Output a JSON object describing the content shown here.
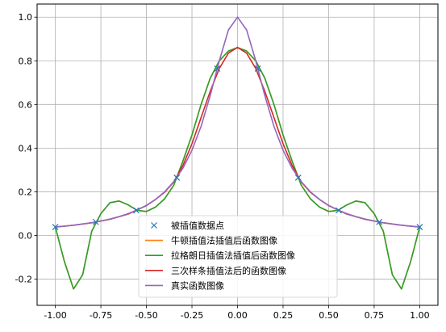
{
  "chart_data": {
    "type": "line",
    "title": "",
    "xlabel": "",
    "ylabel": "",
    "xlim": [
      -1.1,
      1.1
    ],
    "ylim": [
      -0.32,
      1.06
    ],
    "grid": true,
    "legend_position": "lower-center",
    "xticks": [
      "-1.00",
      "-0.75",
      "-0.50",
      "-0.25",
      "0.00",
      "0.25",
      "0.50",
      "0.75",
      "1.00"
    ],
    "xtick_values": [
      -1.0,
      -0.75,
      -0.5,
      -0.25,
      0.0,
      0.25,
      0.5,
      0.75,
      1.0
    ],
    "yticks": [
      "-0.2",
      "0.0",
      "0.2",
      "0.4",
      "0.6",
      "0.8",
      "1.0"
    ],
    "ytick_values": [
      -0.2,
      0.0,
      0.2,
      0.4,
      0.6,
      0.8,
      1.0
    ],
    "series": [
      {
        "name": "被插值数据点",
        "kind": "markers",
        "color": "#1f77b4",
        "x": [
          -1.0,
          -0.7778,
          -0.5556,
          -0.3333,
          -0.1111,
          0.1111,
          0.3333,
          0.5556,
          0.7778,
          1.0
        ],
        "y": [
          0.0385,
          0.062,
          0.1147,
          0.2647,
          0.7642,
          0.7642,
          0.2647,
          0.1147,
          0.062,
          0.0385
        ]
      },
      {
        "name": "牛顿插值法插值后函数图像",
        "kind": "line",
        "color": "#ff7f0e",
        "x": [
          -1.0,
          -0.95,
          -0.9,
          -0.85,
          -0.8,
          -0.75,
          -0.7,
          -0.65,
          -0.6,
          -0.55,
          -0.5,
          -0.45,
          -0.4,
          -0.35,
          -0.3,
          -0.25,
          -0.2,
          -0.15,
          -0.1,
          -0.05,
          0.0,
          0.05,
          0.1,
          0.15,
          0.2,
          0.25,
          0.3,
          0.35,
          0.4,
          0.45,
          0.5,
          0.55,
          0.6,
          0.65,
          0.7,
          0.75,
          0.8,
          0.85,
          0.9,
          0.95,
          1.0
        ],
        "y": [
          0.0385,
          -0.12,
          -0.245,
          -0.18,
          0.02,
          0.1,
          0.15,
          0.158,
          0.14,
          0.115,
          0.11,
          0.13,
          0.168,
          0.23,
          0.34,
          0.46,
          0.6,
          0.72,
          0.8,
          0.845,
          0.86,
          0.845,
          0.8,
          0.72,
          0.6,
          0.46,
          0.34,
          0.23,
          0.168,
          0.13,
          0.11,
          0.115,
          0.14,
          0.158,
          0.15,
          0.1,
          0.02,
          -0.18,
          -0.245,
          -0.12,
          0.0385
        ]
      },
      {
        "name": "拉格朗日插值法插值后函数图像",
        "kind": "line",
        "color": "#2ca02c",
        "x": [
          -1.0,
          -0.95,
          -0.9,
          -0.85,
          -0.8,
          -0.75,
          -0.7,
          -0.65,
          -0.6,
          -0.55,
          -0.5,
          -0.45,
          -0.4,
          -0.35,
          -0.3,
          -0.25,
          -0.2,
          -0.15,
          -0.1,
          -0.05,
          0.0,
          0.05,
          0.1,
          0.15,
          0.2,
          0.25,
          0.3,
          0.35,
          0.4,
          0.45,
          0.5,
          0.55,
          0.6,
          0.65,
          0.7,
          0.75,
          0.8,
          0.85,
          0.9,
          0.95,
          1.0
        ],
        "y": [
          0.0385,
          -0.12,
          -0.245,
          -0.18,
          0.02,
          0.1,
          0.15,
          0.158,
          0.14,
          0.115,
          0.11,
          0.13,
          0.168,
          0.23,
          0.34,
          0.46,
          0.6,
          0.72,
          0.8,
          0.845,
          0.86,
          0.845,
          0.8,
          0.72,
          0.6,
          0.46,
          0.34,
          0.23,
          0.168,
          0.13,
          0.11,
          0.115,
          0.14,
          0.158,
          0.15,
          0.1,
          0.02,
          -0.18,
          -0.245,
          -0.12,
          0.0385
        ]
      },
      {
        "name": "三次样条插值法后的函数图像",
        "kind": "line",
        "color": "#d62728",
        "x": [
          -1.0,
          -0.9,
          -0.8,
          -0.7,
          -0.6,
          -0.5,
          -0.45,
          -0.4,
          -0.35,
          -0.3,
          -0.25,
          -0.2,
          -0.15,
          -0.1,
          -0.05,
          0.0,
          0.05,
          0.1,
          0.15,
          0.2,
          0.25,
          0.3,
          0.35,
          0.4,
          0.45,
          0.5,
          0.6,
          0.7,
          0.8,
          0.9,
          1.0
        ],
        "y": [
          0.0385,
          0.047,
          0.058,
          0.074,
          0.098,
          0.137,
          0.165,
          0.198,
          0.245,
          0.32,
          0.42,
          0.54,
          0.66,
          0.765,
          0.835,
          0.862,
          0.835,
          0.765,
          0.66,
          0.54,
          0.42,
          0.32,
          0.245,
          0.198,
          0.165,
          0.137,
          0.098,
          0.074,
          0.058,
          0.047,
          0.0385
        ]
      },
      {
        "name": "真实函数图像",
        "kind": "line",
        "color": "#9467bd",
        "x": [
          -1.0,
          -0.95,
          -0.9,
          -0.85,
          -0.8,
          -0.75,
          -0.7,
          -0.65,
          -0.6,
          -0.55,
          -0.5,
          -0.45,
          -0.4,
          -0.35,
          -0.3,
          -0.25,
          -0.2,
          -0.15,
          -0.1,
          -0.05,
          0.0,
          0.05,
          0.1,
          0.15,
          0.2,
          0.25,
          0.3,
          0.35,
          0.4,
          0.45,
          0.5,
          0.55,
          0.6,
          0.65,
          0.7,
          0.75,
          0.8,
          0.85,
          0.9,
          0.95,
          1.0
        ],
        "y": [
          0.0385,
          0.0424,
          0.0471,
          0.0525,
          0.0588,
          0.0664,
          0.0755,
          0.0865,
          0.1,
          0.1168,
          0.1379,
          0.165,
          0.2,
          0.2462,
          0.3077,
          0.3902,
          0.5,
          0.64,
          0.8,
          0.9412,
          1.0,
          0.9412,
          0.8,
          0.64,
          0.5,
          0.3902,
          0.3077,
          0.2462,
          0.2,
          0.165,
          0.1379,
          0.1168,
          0.1,
          0.0865,
          0.0755,
          0.0664,
          0.0588,
          0.0525,
          0.0471,
          0.0424,
          0.0385
        ]
      }
    ]
  }
}
